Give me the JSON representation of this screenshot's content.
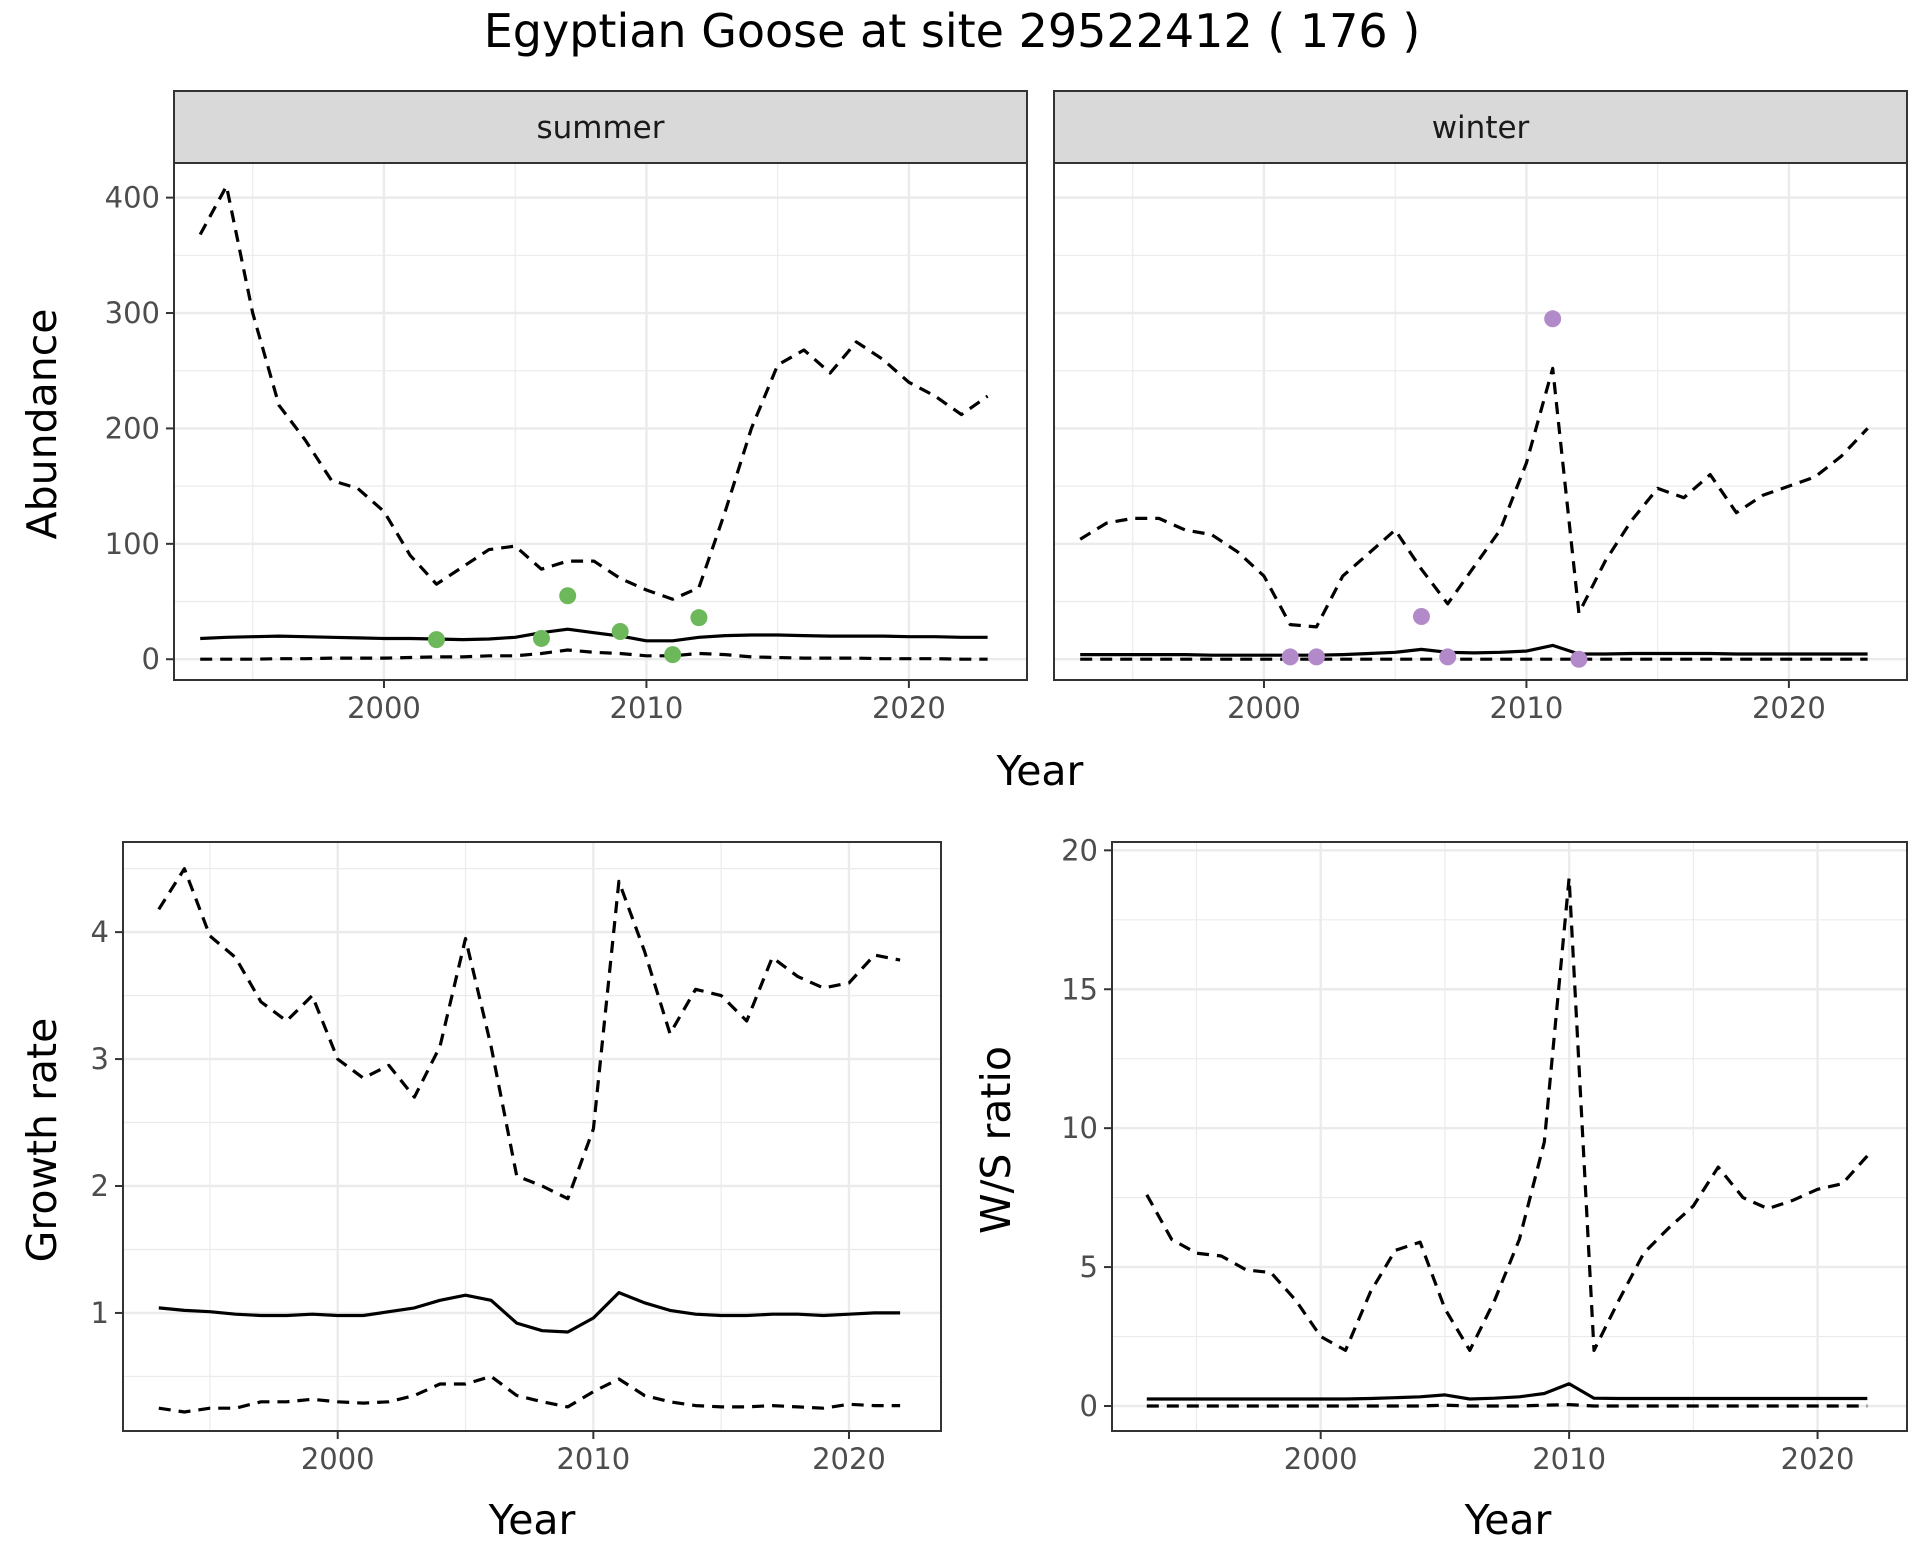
{
  "title": "Egyptian Goose at site 29522412 ( 176 )",
  "colors": {
    "summer_points": "#6db85a",
    "winter_points": "#b38ac9",
    "lines": "#000000",
    "grid": "#ebebeb",
    "strip_bg": "#d9d9d9",
    "panel_border": "#333333"
  },
  "chart_data": [
    {
      "id": "abundance",
      "type": "line",
      "facets": [
        "summer",
        "winter"
      ],
      "xlabel": "Year",
      "ylabel": "Abundance",
      "xlim": [
        1992,
        2024.5
      ],
      "ylim": [
        -18,
        430
      ],
      "x_ticks": [
        2000,
        2010,
        2020
      ],
      "y_ticks": [
        0,
        100,
        200,
        300,
        400
      ],
      "panels": [
        {
          "facet": "summer",
          "upper": {
            "x": [
              1993,
              1994,
              1995,
              1996,
              1997,
              1998,
              1999,
              2000,
              2001,
              2002,
              2003,
              2004,
              2005,
              2006,
              2007,
              2008,
              2009,
              2010,
              2011,
              2012,
              2013,
              2014,
              2015,
              2016,
              2017,
              2018,
              2019,
              2020,
              2021,
              2022,
              2023
            ],
            "y": [
              368,
              410,
              300,
              220,
              190,
              155,
              148,
              128,
              90,
              65,
              80,
              95,
              98,
              78,
              85,
              85,
              70,
              60,
              52,
              62,
              128,
              200,
              255,
              268,
              248,
              275,
              260,
              240,
              228,
              212,
              228
            ]
          },
          "mean": {
            "x": [
              1993,
              1994,
              1995,
              1996,
              1997,
              1998,
              1999,
              2000,
              2001,
              2002,
              2003,
              2004,
              2005,
              2006,
              2007,
              2008,
              2009,
              2010,
              2011,
              2012,
              2013,
              2014,
              2015,
              2016,
              2017,
              2018,
              2019,
              2020,
              2021,
              2022,
              2023
            ],
            "y": [
              18,
              19,
              19.5,
              20,
              19.5,
              19,
              18.5,
              18,
              18,
              17.5,
              17,
              17.5,
              19,
              23,
              26,
              23,
              20,
              16,
              16,
              19,
              20.5,
              21,
              21,
              20.5,
              20,
              20,
              20,
              19.5,
              19.5,
              19,
              19
            ]
          },
          "lower": {
            "x": [
              1993,
              1994,
              1995,
              1996,
              1997,
              1998,
              1999,
              2000,
              2001,
              2002,
              2003,
              2004,
              2005,
              2006,
              2007,
              2008,
              2009,
              2010,
              2011,
              2012,
              2013,
              2014,
              2015,
              2016,
              2017,
              2018,
              2019,
              2020,
              2021,
              2022,
              2023
            ],
            "y": [
              0,
              0,
              0,
              0.5,
              0.5,
              1,
              1,
              1,
              1.5,
              2,
              2,
              3,
              3,
              5,
              8,
              6,
              5,
              3,
              3,
              5,
              4,
              2,
              1.5,
              1,
              1,
              1,
              0.5,
              0.5,
              0.5,
              0,
              0
            ]
          },
          "observed": {
            "x": [
              2002,
              2006,
              2007,
              2009,
              2011,
              2012
            ],
            "y": [
              17,
              18,
              55,
              24,
              4,
              36
            ]
          }
        },
        {
          "facet": "winter",
          "upper": {
            "x": [
              1993,
              1994,
              1995,
              1996,
              1997,
              1998,
              1999,
              2000,
              2001,
              2002,
              2003,
              2004,
              2005,
              2006,
              2007,
              2008,
              2009,
              2010,
              2011,
              2012,
              2013,
              2014,
              2015,
              2016,
              2017,
              2018,
              2019,
              2020,
              2021,
              2022,
              2023
            ],
            "y": [
              104,
              118,
              122,
              122,
              112,
              108,
              93,
              72,
              30,
              28,
              72,
              92,
              112,
              78,
              48,
              80,
              112,
              170,
              252,
              40,
              85,
              120,
              148,
              140,
              160,
              127,
              142,
              150,
              158,
              176,
              200
            ]
          },
          "mean": {
            "x": [
              1993,
              1994,
              1995,
              1996,
              1997,
              1998,
              1999,
              2000,
              2001,
              2002,
              2003,
              2004,
              2005,
              2006,
              2007,
              2008,
              2009,
              2010,
              2011,
              2012,
              2013,
              2014,
              2015,
              2016,
              2017,
              2018,
              2019,
              2020,
              2021,
              2022,
              2023
            ],
            "y": [
              4,
              4,
              4,
              4,
              4,
              3.5,
              3.5,
              3.5,
              3.5,
              3.5,
              4,
              5,
              6,
              8.5,
              6,
              5.5,
              6,
              7,
              12,
              4.5,
              4.5,
              5,
              5,
              5,
              5,
              4.5,
              4.5,
              4.5,
              4.5,
              4.5,
              4.5
            ]
          },
          "lower": {
            "x": [
              1993,
              1994,
              1995,
              1996,
              1997,
              1998,
              1999,
              2000,
              2001,
              2002,
              2003,
              2004,
              2005,
              2006,
              2007,
              2008,
              2009,
              2010,
              2011,
              2012,
              2013,
              2014,
              2015,
              2016,
              2017,
              2018,
              2019,
              2020,
              2021,
              2022,
              2023
            ],
            "y": [
              0,
              0,
              0,
              0,
              0,
              0,
              0,
              0,
              0,
              0,
              0,
              0,
              0,
              0,
              0,
              0,
              0,
              0,
              0,
              0,
              0,
              0,
              0,
              0,
              0,
              0,
              0,
              0,
              0,
              0,
              0
            ]
          },
          "observed": {
            "x": [
              2001,
              2002,
              2006,
              2007,
              2011,
              2012
            ],
            "y": [
              2,
              2,
              37,
              2,
              295,
              0
            ]
          }
        }
      ]
    },
    {
      "id": "growth",
      "type": "line",
      "xlabel": "Year",
      "ylabel": "Growth rate",
      "xlim": [
        1991.6,
        2023.6
      ],
      "ylim": [
        0.07,
        4.71
      ],
      "x_ticks": [
        2000,
        2010,
        2020
      ],
      "y_ticks": [
        1,
        2,
        3,
        4
      ],
      "upper": {
        "x": [
          1993,
          1994,
          1995,
          1996,
          1997,
          1998,
          1999,
          2000,
          2001,
          2002,
          2003,
          2004,
          2005,
          2006,
          2007,
          2008,
          2009,
          2010,
          2011,
          2012,
          2013,
          2014,
          2015,
          2016,
          2017,
          2018,
          2019,
          2020,
          2021,
          2022
        ],
        "y": [
          4.18,
          4.5,
          3.97,
          3.8,
          3.45,
          3.3,
          3.5,
          3.0,
          2.85,
          2.95,
          2.7,
          3.1,
          3.95,
          3.1,
          2.08,
          2.0,
          1.9,
          2.45,
          4.4,
          3.85,
          3.2,
          3.55,
          3.5,
          3.3,
          3.8,
          3.65,
          3.56,
          3.6,
          3.82,
          3.78
        ]
      },
      "mean": {
        "x": [
          1993,
          1994,
          1995,
          1996,
          1997,
          1998,
          1999,
          2000,
          2001,
          2002,
          2003,
          2004,
          2005,
          2006,
          2007,
          2008,
          2009,
          2010,
          2011,
          2012,
          2013,
          2014,
          2015,
          2016,
          2017,
          2018,
          2019,
          2020,
          2021,
          2022
        ],
        "y": [
          1.04,
          1.02,
          1.01,
          0.99,
          0.98,
          0.98,
          0.99,
          0.98,
          0.98,
          1.01,
          1.04,
          1.1,
          1.14,
          1.1,
          0.92,
          0.86,
          0.85,
          0.96,
          1.16,
          1.08,
          1.02,
          0.99,
          0.98,
          0.98,
          0.99,
          0.99,
          0.98,
          0.99,
          1.0,
          1.0
        ]
      },
      "lower": {
        "x": [
          1993,
          1994,
          1995,
          1996,
          1997,
          1998,
          1999,
          2000,
          2001,
          2002,
          2003,
          2004,
          2005,
          2006,
          2007,
          2008,
          2009,
          2010,
          2011,
          2012,
          2013,
          2014,
          2015,
          2016,
          2017,
          2018,
          2019,
          2020,
          2021,
          2022
        ],
        "y": [
          0.25,
          0.22,
          0.25,
          0.25,
          0.3,
          0.3,
          0.32,
          0.3,
          0.29,
          0.3,
          0.35,
          0.44,
          0.44,
          0.5,
          0.35,
          0.3,
          0.26,
          0.38,
          0.48,
          0.35,
          0.3,
          0.27,
          0.26,
          0.26,
          0.27,
          0.26,
          0.25,
          0.28,
          0.27,
          0.27
        ]
      }
    },
    {
      "id": "ws_ratio",
      "type": "line",
      "xlabel": "Year",
      "ylabel": "W/S ratio",
      "xlim": [
        1991.6,
        2023.6
      ],
      "ylim": [
        -0.9,
        20.3
      ],
      "x_ticks": [
        2000,
        2010,
        2020
      ],
      "y_ticks": [
        0,
        5,
        10,
        15,
        20
      ],
      "upper": {
        "x": [
          1993,
          1994,
          1995,
          1996,
          1997,
          1998,
          1999,
          2000,
          2001,
          2002,
          2003,
          2004,
          2005,
          2006,
          2007,
          2008,
          2009,
          2010,
          2011,
          2012,
          2013,
          2014,
          2015,
          2016,
          2017,
          2018,
          2019,
          2020,
          2021,
          2022
        ],
        "y": [
          7.6,
          6.0,
          5.5,
          5.4,
          4.9,
          4.8,
          3.8,
          2.5,
          2.0,
          4.1,
          5.6,
          5.9,
          3.5,
          2.0,
          3.8,
          6.0,
          9.5,
          19.0,
          2.0,
          3.8,
          5.5,
          6.4,
          7.2,
          8.6,
          7.5,
          7.1,
          7.4,
          7.8,
          8.0,
          9.0
        ]
      },
      "mean": {
        "x": [
          1993,
          1994,
          1995,
          1996,
          1997,
          1998,
          1999,
          2000,
          2001,
          2002,
          2003,
          2004,
          2005,
          2006,
          2007,
          2008,
          2009,
          2010,
          2011,
          2012,
          2013,
          2014,
          2015,
          2016,
          2017,
          2018,
          2019,
          2020,
          2021,
          2022
        ],
        "y": [
          0.25,
          0.25,
          0.25,
          0.25,
          0.25,
          0.25,
          0.25,
          0.25,
          0.25,
          0.27,
          0.3,
          0.33,
          0.4,
          0.25,
          0.28,
          0.33,
          0.45,
          0.8,
          0.28,
          0.27,
          0.27,
          0.27,
          0.27,
          0.27,
          0.27,
          0.27,
          0.27,
          0.27,
          0.27,
          0.27
        ]
      },
      "lower": {
        "x": [
          1993,
          1994,
          1995,
          1996,
          1997,
          1998,
          1999,
          2000,
          2001,
          2002,
          2003,
          2004,
          2005,
          2006,
          2007,
          2008,
          2009,
          2010,
          2011,
          2012,
          2013,
          2014,
          2015,
          2016,
          2017,
          2018,
          2019,
          2020,
          2021,
          2022
        ],
        "y": [
          0,
          0,
          0,
          0,
          0,
          0,
          0,
          0,
          0,
          0,
          0,
          0,
          0.03,
          0,
          0,
          0,
          0.03,
          0.05,
          0,
          0,
          0,
          0,
          0,
          0,
          0,
          0,
          0,
          0,
          0,
          0
        ]
      }
    }
  ]
}
